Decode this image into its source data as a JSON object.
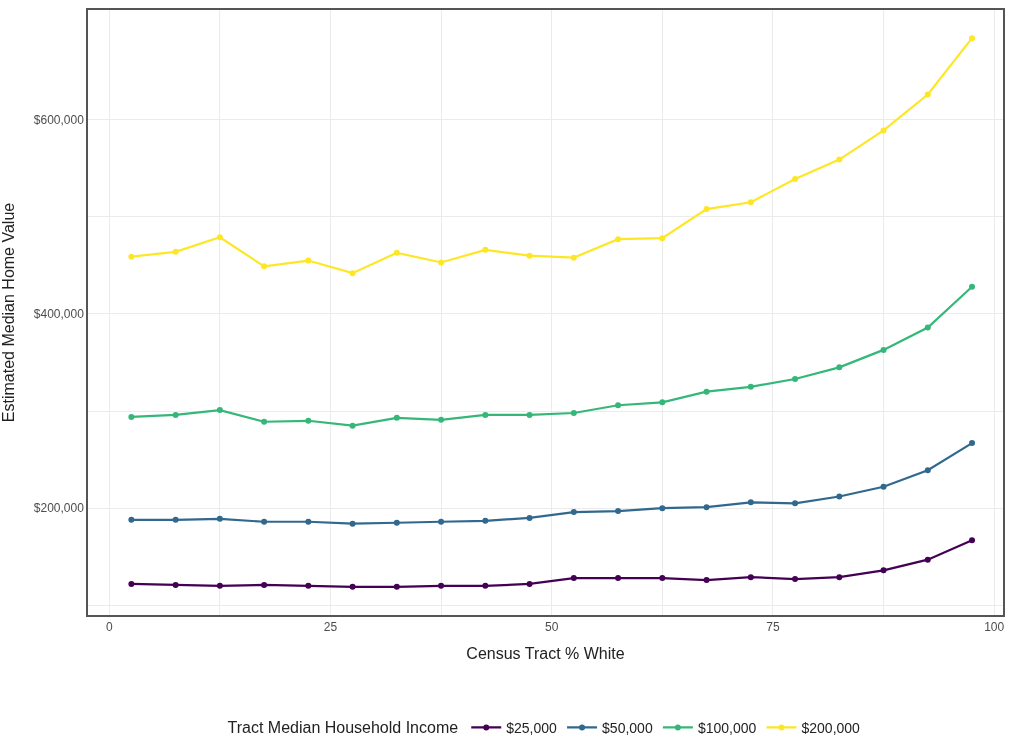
{
  "chart_data": {
    "type": "line",
    "xlabel": "Census Tract % White",
    "ylabel": "Estimated Median Home Value",
    "legend_title": "Tract Median Household Income",
    "x": [
      2.5,
      7.5,
      12.5,
      17.5,
      22.5,
      27.5,
      32.5,
      37.5,
      42.5,
      47.5,
      52.5,
      57.5,
      62.5,
      67.5,
      72.5,
      77.5,
      82.5,
      87.5,
      92.5,
      97.5
    ],
    "series": [
      {
        "name": "$25,000",
        "color": "#440154",
        "values": [
          122000,
          121000,
          120000,
          121000,
          120000,
          119000,
          119000,
          120000,
          120000,
          122000,
          128000,
          128000,
          128000,
          126000,
          129000,
          127000,
          129000,
          136000,
          147000,
          167000
        ]
      },
      {
        "name": "$50,000",
        "color": "#31688e",
        "values": [
          188000,
          188000,
          189000,
          186000,
          186000,
          184000,
          185000,
          186000,
          187000,
          190000,
          196000,
          197000,
          200000,
          201000,
          206000,
          205000,
          212000,
          222000,
          239000,
          267000
        ]
      },
      {
        "name": "$100,000",
        "color": "#35b779",
        "values": [
          294000,
          296000,
          301000,
          289000,
          290000,
          285000,
          293000,
          291000,
          296000,
          296000,
          298000,
          306000,
          309000,
          320000,
          325000,
          333000,
          345000,
          363000,
          386000,
          428000
        ]
      },
      {
        "name": "$200,000",
        "color": "#fde725",
        "values": [
          459000,
          464000,
          479000,
          449000,
          455000,
          442000,
          463000,
          453000,
          466000,
          460000,
          458000,
          477000,
          478000,
          508000,
          515000,
          539000,
          559000,
          589000,
          626000,
          684000
        ]
      }
    ],
    "xlim": [
      -2.4,
      101
    ],
    "xticks": [
      0,
      {
        "value": 12.5,
        "label": null
      },
      25,
      {
        "value": 37.5,
        "label": null
      },
      50,
      {
        "value": 62.5,
        "label": null
      },
      75,
      {
        "value": 87.5,
        "label": null
      },
      100
    ],
    "ylim": [
      90000,
      713000
    ],
    "yticks": [
      {
        "value": 100000,
        "label": null
      },
      {
        "value": 200000,
        "label": "$200,000"
      },
      {
        "value": 300000,
        "label": null
      },
      {
        "value": 400000,
        "label": "$400,000"
      },
      {
        "value": 500000,
        "label": null
      },
      {
        "value": 600000,
        "label": "$600,000"
      }
    ],
    "grid": true,
    "legend": "bottom",
    "marker": "circle",
    "line_style": "solid"
  }
}
